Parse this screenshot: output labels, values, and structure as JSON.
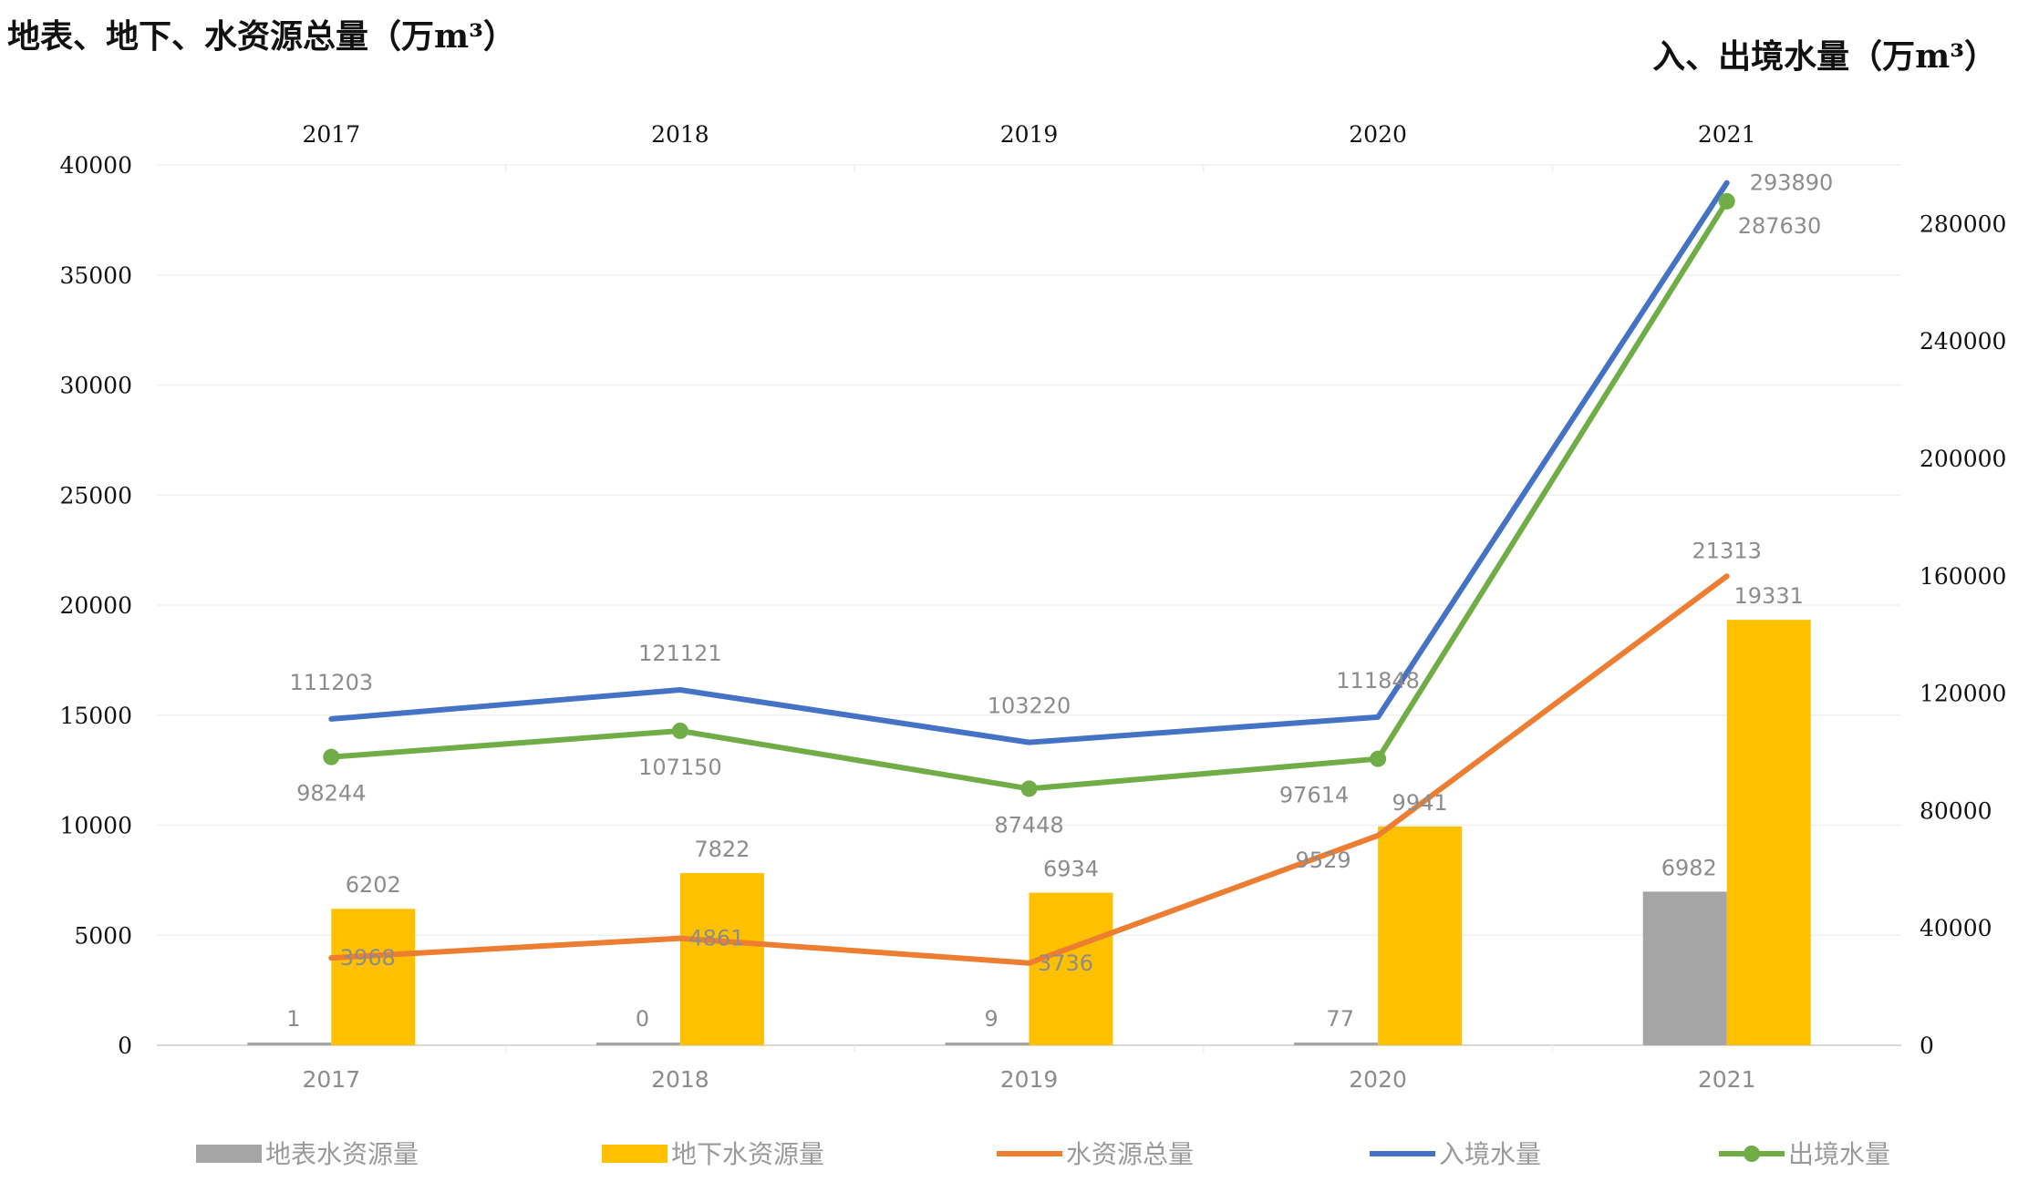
{
  "chart_data": {
    "type": "bar",
    "title_left": "地表、地下、水资源总量（万m³）",
    "title_right": "入、出境水量（万m³）",
    "categories": [
      "2017",
      "2018",
      "2019",
      "2020",
      "2021"
    ],
    "y_left": {
      "min": 0,
      "max": 40000,
      "ticks": [
        "0",
        "5000",
        "10000",
        "15000",
        "20000",
        "25000",
        "30000",
        "35000",
        "40000"
      ]
    },
    "y_right": {
      "min": 0,
      "max": 300000,
      "ticks": [
        "0",
        "40000",
        "80000",
        "120000",
        "160000",
        "200000",
        "240000",
        "280000"
      ]
    },
    "series": [
      {
        "name": "地表水资源量",
        "kind": "bar",
        "axis": "left",
        "color": "#a5a5a5",
        "values": [
          1,
          0,
          9,
          77,
          6982
        ],
        "labels": [
          "1",
          "0",
          "9",
          "77",
          "6982"
        ]
      },
      {
        "name": "地下水资源量",
        "kind": "bar",
        "axis": "left",
        "color": "#ffc000",
        "values": [
          6202,
          7822,
          6934,
          9941,
          19331
        ],
        "labels": [
          "6202",
          "7822",
          "6934",
          "9941",
          "19331"
        ]
      },
      {
        "name": "水资源总量",
        "kind": "line",
        "axis": "left",
        "color": "#ed7d31",
        "values": [
          3968,
          4861,
          3736,
          9529,
          21313
        ],
        "labels": [
          "3968",
          "4861",
          "3736",
          "9529",
          "21313"
        ]
      },
      {
        "name": "入境水量",
        "kind": "line",
        "axis": "right",
        "color": "#4472c4",
        "values": [
          111203,
          121121,
          103220,
          111848,
          293890
        ],
        "labels": [
          "111203",
          "121121",
          "103220",
          "111848",
          "293890"
        ]
      },
      {
        "name": "出境水量",
        "kind": "line-marker",
        "axis": "right",
        "color": "#70ad47",
        "values": [
          98244,
          107150,
          87448,
          97614,
          287630
        ],
        "labels": [
          "98244",
          "107150",
          "87448",
          "97614",
          "287630"
        ]
      }
    ],
    "legend_position": "bottom",
    "grid": true
  }
}
